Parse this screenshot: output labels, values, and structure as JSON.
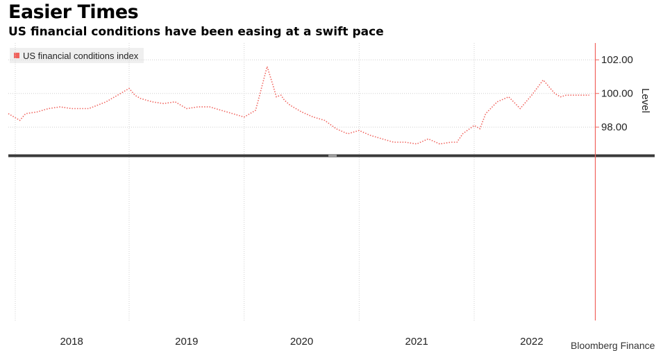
{
  "header": {
    "title": "Easier Times",
    "subtitle": "US financial conditions have been easing at a swift pace"
  },
  "colors": {
    "series": "#f0625c",
    "right_axis": "#f0625c",
    "divider": "#3a3a3a",
    "grid": "#cfcfcf"
  },
  "chart_data": {
    "type": "line",
    "title": "Easier Times",
    "subtitle": "US financial conditions have been easing at a swift pace",
    "xlabel": "",
    "ylabel": "Level",
    "x_tick_labels": [
      "2018",
      "2019",
      "2020",
      "2021",
      "2022"
    ],
    "y_tick_labels": [
      "102.00",
      "100.00",
      "98.00"
    ],
    "yticks": [
      102,
      100,
      98
    ],
    "xlim": [
      2017.45,
      2022.55
    ],
    "ylim": [
      96.4,
      103.0
    ],
    "grid": true,
    "legend": "top-left",
    "series": [
      {
        "name": "US financial conditions index",
        "color": "#f0625c",
        "style": "dotted",
        "x": [
          2017.45,
          2017.55,
          2017.6,
          2017.7,
          2017.8,
          2017.9,
          2018.0,
          2018.15,
          2018.3,
          2018.4,
          2018.5,
          2018.55,
          2018.6,
          2018.7,
          2018.8,
          2018.9,
          2019.0,
          2019.1,
          2019.2,
          2019.3,
          2019.4,
          2019.5,
          2019.6,
          2019.7,
          2019.75,
          2019.78,
          2019.82,
          2019.85,
          2019.9,
          2020.0,
          2020.1,
          2020.2,
          2020.3,
          2020.4,
          2020.5,
          2020.6,
          2020.7,
          2020.8,
          2020.9,
          2021.0,
          2021.1,
          2021.2,
          2021.3,
          2021.35,
          2021.4,
          2021.5,
          2021.55,
          2021.6,
          2021.7,
          2021.8,
          2021.9,
          2022.0,
          2022.1,
          2022.15,
          2022.2,
          2022.25,
          2022.3,
          2022.35,
          2022.4,
          2022.45,
          2022.5
        ],
        "values": [
          98.8,
          98.4,
          98.8,
          98.9,
          99.1,
          99.2,
          99.1,
          99.1,
          99.5,
          99.9,
          100.3,
          99.9,
          99.7,
          99.5,
          99.4,
          99.5,
          99.1,
          99.2,
          99.2,
          99.0,
          98.8,
          98.6,
          99.0,
          101.6,
          100.5,
          99.8,
          99.9,
          99.6,
          99.3,
          98.9,
          98.6,
          98.4,
          97.9,
          97.6,
          97.8,
          97.5,
          97.3,
          97.1,
          97.1,
          97.0,
          97.3,
          97.0,
          97.1,
          97.1,
          97.6,
          98.1,
          97.9,
          98.8,
          99.5,
          99.8,
          99.1,
          99.9,
          100.8,
          100.4,
          100.0,
          99.8,
          99.9,
          99.9,
          99.9,
          99.9,
          99.9
        ]
      }
    ]
  },
  "source_partial": "Bloomberg Finance"
}
